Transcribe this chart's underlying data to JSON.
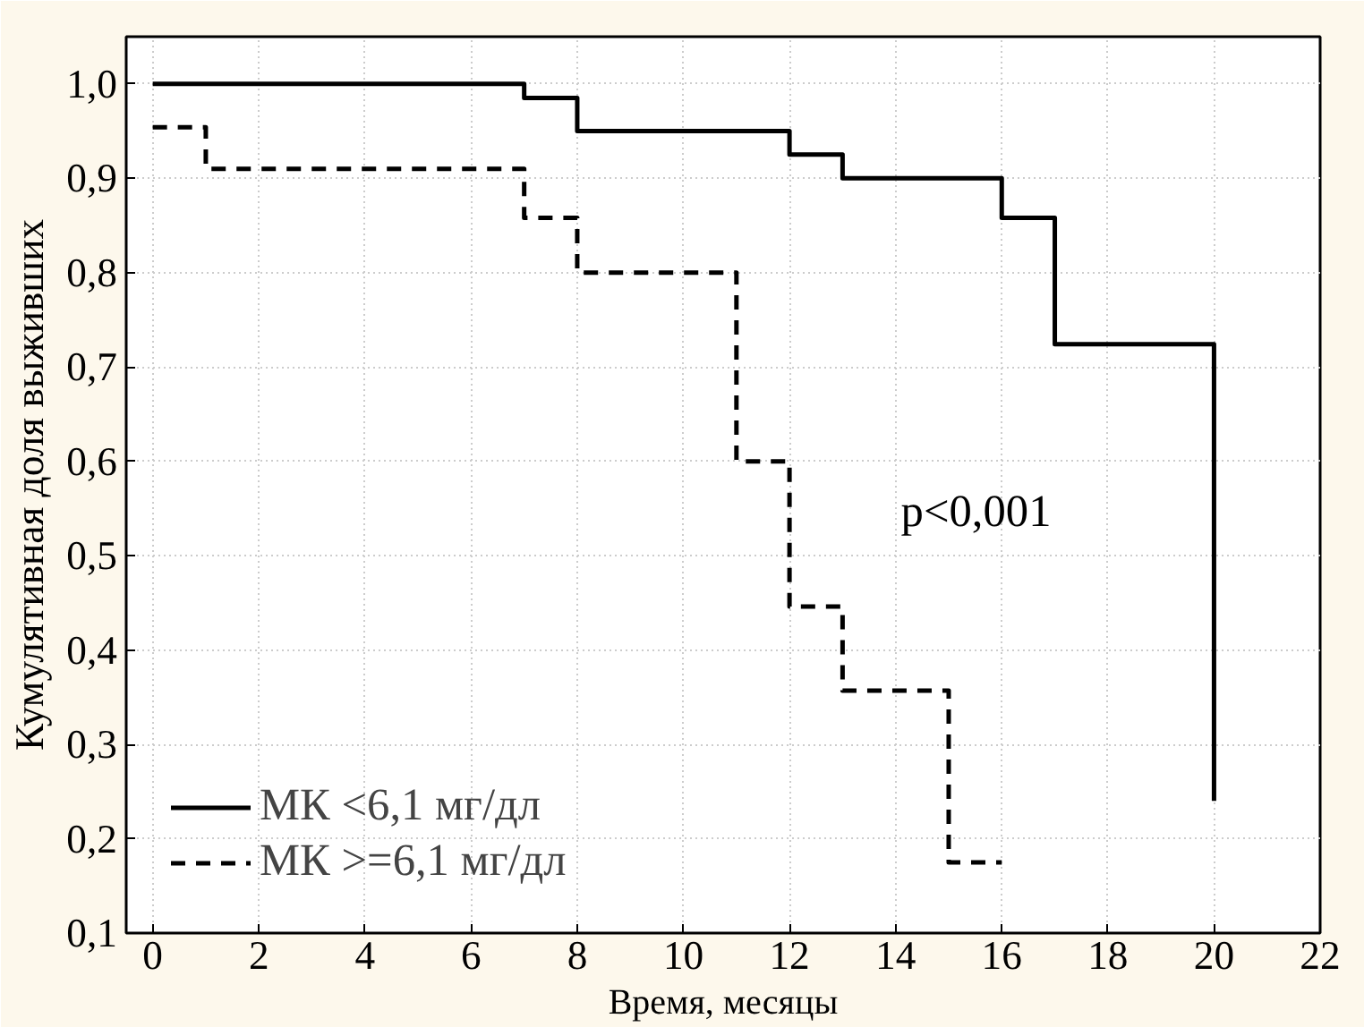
{
  "chart_data": {
    "type": "step",
    "xlabel": "Время, месяцы",
    "ylabel": "Кумулятивная доля выживших",
    "xlim": [
      -0.5,
      22
    ],
    "ylim": [
      0.1,
      1.05
    ],
    "xticks": [
      0,
      2,
      4,
      6,
      8,
      10,
      12,
      14,
      16,
      18,
      20,
      22
    ],
    "yticks": [
      {
        "value": 0.1,
        "label": "0,1"
      },
      {
        "value": 0.2,
        "label": "0,2"
      },
      {
        "value": 0.3,
        "label": "0,3"
      },
      {
        "value": 0.4,
        "label": "0,4"
      },
      {
        "value": 0.5,
        "label": "0,5"
      },
      {
        "value": 0.6,
        "label": "0,6"
      },
      {
        "value": 0.7,
        "label": "0,7"
      },
      {
        "value": 0.8,
        "label": "0,8"
      },
      {
        "value": 0.9,
        "label": "0,9"
      },
      {
        "value": 1.0,
        "label": "1,0"
      }
    ],
    "grid": true,
    "legend": "bottom left",
    "marker": "none",
    "annotations": [
      "p<0,001"
    ],
    "series": [
      {
        "name": "МК <6,1 мг/дл",
        "color": "#000000",
        "line_style": "solid",
        "x": [
          0,
          7,
          8,
          12,
          13,
          16,
          17,
          20
        ],
        "values": [
          1.0,
          0.985,
          0.95,
          0.925,
          0.9,
          0.858,
          0.724,
          0.24
        ]
      },
      {
        "name": "МК >=6,1 мг/дл",
        "color": "#000000",
        "line_style": "dashed",
        "x": [
          0,
          1,
          7,
          8,
          11,
          12,
          13,
          15,
          16
        ],
        "values": [
          0.954,
          0.91,
          0.858,
          0.8,
          0.6,
          0.446,
          0.357,
          0.175,
          0.175
        ]
      }
    ]
  }
}
